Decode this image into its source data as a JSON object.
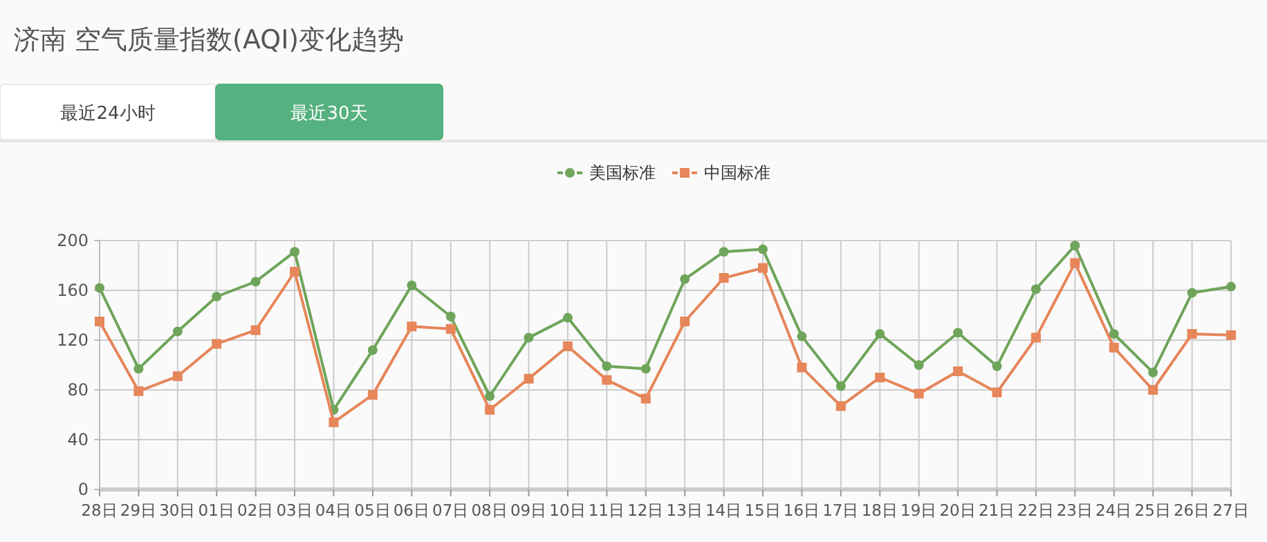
{
  "chart_data": {
    "type": "line",
    "title": "济南 空气质量指数(AQI)变化趋势",
    "annotations": [
      "最近24小时",
      "最近30天"
    ],
    "categories": [
      "28日",
      "29日",
      "30日",
      "01日",
      "02日",
      "03日",
      "04日",
      "05日",
      "06日",
      "07日",
      "08日",
      "09日",
      "10日",
      "11日",
      "12日",
      "13日",
      "14日",
      "15日",
      "16日",
      "17日",
      "18日",
      "19日",
      "20日",
      "21日",
      "22日",
      "23日",
      "24日",
      "25日",
      "26日",
      "27日"
    ],
    "series": [
      {
        "name": "美国标准",
        "color": "#6ea55a",
        "marker": "circle",
        "values": [
          162,
          97,
          127,
          155,
          167,
          191,
          64,
          112,
          164,
          139,
          75,
          122,
          138,
          99,
          97,
          169,
          191,
          193,
          123,
          83,
          125,
          100,
          126,
          99,
          161,
          196,
          125,
          94,
          158,
          163
        ]
      },
      {
        "name": "中国标准",
        "color": "#e6865a",
        "marker": "square",
        "values": [
          135,
          79,
          91,
          117,
          128,
          175,
          54,
          76,
          131,
          129,
          64,
          89,
          115,
          88,
          73,
          135,
          170,
          178,
          98,
          67,
          90,
          77,
          95,
          78,
          122,
          182,
          114,
          80,
          125,
          124
        ]
      }
    ],
    "ylim": [
      0,
      200
    ],
    "yticks": [
      0,
      40,
      80,
      120,
      160,
      200
    ],
    "grid": true,
    "legend": "top",
    "line_style": "solid"
  }
}
